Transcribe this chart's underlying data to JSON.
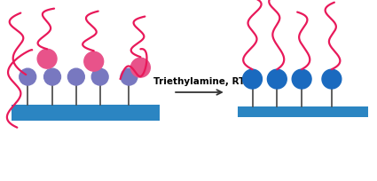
{
  "bg_color": "#ffffff",
  "substrate_color": "#2b85c2",
  "stem_color": "#444444",
  "ball_left_color": "#7878c0",
  "ball_right_color": "#1a6abf",
  "polymer_color": "#e8195a",
  "pink_ball_color": "#e8538a",
  "arrow_color": "#333333",
  "text": "Triethylamine, RT",
  "text_fontsize": 7.5
}
